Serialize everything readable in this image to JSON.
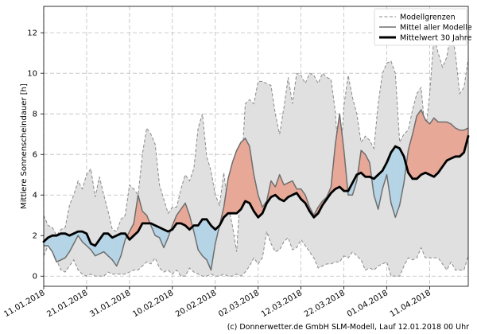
{
  "chart_data": {
    "type": "area",
    "ylabel": "Mittlere Sonnenscheindauer [h]",
    "ylim": [
      -0.5,
      13.3
    ],
    "yticks": [
      0,
      2,
      4,
      6,
      8,
      10,
      12
    ],
    "x_days_range": [
      0,
      99
    ],
    "xticks": [
      {
        "day": 0,
        "label": "11.01.2018"
      },
      {
        "day": 10,
        "label": "21.01.2018"
      },
      {
        "day": 20,
        "label": "31.01.2018"
      },
      {
        "day": 30,
        "label": "10.02.2018"
      },
      {
        "day": 40,
        "label": "20.02.2018"
      },
      {
        "day": 50,
        "label": "02.03.2018"
      },
      {
        "day": 60,
        "label": "12.03.2018"
      },
      {
        "day": 70,
        "label": "22.03.2018"
      },
      {
        "day": 80,
        "label": "01.04.2018"
      },
      {
        "day": 90,
        "label": "11.04.2018"
      }
    ],
    "grid": true,
    "legend_position": "top-right",
    "legend": [
      {
        "key": "grenzen",
        "label": "Modellgrenzen"
      },
      {
        "key": "mittel",
        "label": "Mittel aller Modelle"
      },
      {
        "key": "mean30",
        "label": "Mittelwert 30 Jahre"
      }
    ],
    "colors": {
      "envelope": "#e0e0e0",
      "envelope_edge": "#8a8a8a",
      "above": "#e8a898",
      "below": "#b5d5e6",
      "mittel": "#6e6e6e",
      "mean30": "#000000",
      "grid": "#bdbdbd"
    },
    "x": [
      0,
      1,
      2,
      3,
      4,
      5,
      6,
      7,
      8,
      9,
      10,
      11,
      12,
      13,
      14,
      15,
      16,
      17,
      18,
      19,
      20,
      21,
      22,
      23,
      24,
      25,
      26,
      27,
      28,
      29,
      30,
      31,
      32,
      33,
      34,
      35,
      36,
      37,
      38,
      39,
      40,
      41,
      42,
      43,
      44,
      45,
      46,
      47,
      48,
      49,
      50,
      51,
      52,
      53,
      54,
      55,
      56,
      57,
      58,
      59,
      60,
      61,
      62,
      63,
      64,
      65,
      66,
      67,
      68,
      69,
      70,
      71,
      72,
      73,
      74,
      75,
      76,
      77,
      78,
      79,
      80,
      81,
      82,
      83,
      84,
      85,
      86,
      87,
      88,
      89,
      90,
      91,
      92,
      93,
      94,
      95,
      96,
      97,
      98,
      99
    ],
    "upper": [
      3.0,
      2.5,
      2.4,
      2.0,
      2.3,
      2.4,
      3.5,
      4.0,
      4.7,
      4.3,
      5.0,
      5.3,
      3.9,
      4.9,
      4.0,
      3.2,
      2.3,
      2.2,
      2.8,
      3.0,
      4.5,
      4.3,
      4.0,
      6.0,
      7.3,
      7.0,
      6.5,
      4.5,
      3.8,
      3.1,
      3.4,
      3.4,
      4.3,
      5.0,
      4.7,
      5.3,
      7.3,
      8.0,
      5.9,
      5.2,
      4.0,
      3.5,
      5.1,
      3.5,
      2.5,
      1.2,
      4.8,
      8.5,
      8.7,
      8.5,
      9.6,
      9.6,
      9.5,
      9.4,
      8.0,
      7.0,
      8.3,
      9.8,
      8.5,
      10.0,
      9.9,
      9.5,
      10.0,
      9.9,
      9.5,
      10.0,
      9.8,
      9.7,
      8.1,
      5.0,
      8.4,
      9.9,
      8.8,
      8.0,
      6.6,
      6.9,
      6.7,
      6.3,
      8.5,
      10.0,
      10.5,
      10.6,
      10.0,
      6.6,
      7.0,
      7.2,
      8.2,
      9.0,
      9.3,
      7.0,
      9.0,
      11.8,
      11.0,
      10.3,
      10.8,
      12.1,
      11.0,
      9.0,
      9.3,
      10.7
    ],
    "lower": [
      1.0,
      1.5,
      1.2,
      0.8,
      0.3,
      0.2,
      0.5,
      0.8,
      0.3,
      0.1,
      0.0,
      0.1,
      0.0,
      0.0,
      0.0,
      0.2,
      0.1,
      0.1,
      0.1,
      0.1,
      0.2,
      0.3,
      0.3,
      0.5,
      0.7,
      0.6,
      0.9,
      0.4,
      0.2,
      0.3,
      0.1,
      0.3,
      0.0,
      0.0,
      0.4,
      0.2,
      0.1,
      0.0,
      0.0,
      0.1,
      0.0,
      0.0,
      0.1,
      0.0,
      0.0,
      0.1,
      0.0,
      0.2,
      0.5,
      0.9,
      0.6,
      0.9,
      2.2,
      1.6,
      1.2,
      1.3,
      1.7,
      1.9,
      1.3,
      1.4,
      1.8,
      1.5,
      1.2,
      0.9,
      0.4,
      0.5,
      0.6,
      0.6,
      0.7,
      0.7,
      1.0,
      0.9,
      1.2,
      1.0,
      0.8,
      0.3,
      0.4,
      0.3,
      0.5,
      0.6,
      0.7,
      0.0,
      0.0,
      0.0,
      0.5,
      0.9,
      0.8,
      0.9,
      1.4,
      0.9,
      0.9,
      0.9,
      0.9,
      0.6,
      0.3,
      0.7,
      0.3,
      0.3,
      0.3,
      1.0
    ],
    "mittel": [
      1.5,
      1.5,
      1.2,
      0.7,
      0.8,
      0.9,
      1.2,
      1.6,
      2.0,
      1.7,
      1.5,
      1.3,
      1.0,
      1.1,
      1.2,
      1.0,
      0.8,
      0.5,
      1.0,
      1.8,
      2.2,
      2.6,
      4.0,
      3.2,
      3.0,
      2.5,
      2.0,
      1.9,
      1.4,
      1.9,
      2.5,
      3.0,
      3.3,
      3.6,
      3.0,
      2.2,
      1.3,
      1.0,
      0.8,
      0.3,
      1.6,
      2.5,
      3.4,
      4.8,
      5.6,
      6.2,
      6.6,
      6.8,
      6.4,
      5.0,
      4.0,
      3.4,
      3.7,
      4.7,
      4.4,
      5.0,
      4.5,
      4.6,
      4.7,
      4.3,
      4.3,
      4.0,
      3.4,
      3.0,
      3.4,
      3.7,
      3.9,
      4.4,
      6.5,
      8.0,
      6.2,
      4.0,
      4.0,
      4.7,
      6.2,
      6.0,
      5.6,
      4.0,
      3.3,
      4.3,
      5.0,
      3.6,
      2.9,
      3.5,
      4.6,
      6.2,
      7.0,
      7.9,
      8.2,
      7.7,
      7.5,
      7.8,
      7.6,
      7.6,
      7.6,
      7.5,
      7.3,
      7.2,
      7.2,
      7.3
    ],
    "mean30": [
      1.7,
      1.9,
      2.0,
      2.0,
      2.1,
      2.1,
      2.0,
      2.1,
      2.2,
      2.2,
      2.1,
      1.6,
      1.5,
      1.8,
      2.1,
      2.1,
      1.9,
      2.0,
      2.1,
      2.1,
      1.8,
      2.0,
      2.2,
      2.6,
      2.6,
      2.6,
      2.5,
      2.4,
      2.3,
      2.2,
      2.3,
      2.6,
      2.6,
      2.5,
      2.3,
      2.5,
      2.5,
      2.8,
      2.8,
      2.5,
      2.3,
      2.5,
      2.9,
      3.1,
      3.1,
      3.1,
      3.3,
      3.7,
      3.6,
      3.2,
      2.9,
      3.1,
      3.6,
      3.9,
      4.0,
      3.8,
      3.7,
      3.9,
      4.0,
      4.1,
      3.8,
      3.6,
      3.2,
      2.9,
      3.1,
      3.5,
      3.8,
      4.1,
      4.3,
      4.4,
      4.2,
      4.2,
      4.6,
      5.0,
      5.1,
      4.9,
      4.9,
      4.8,
      5.0,
      5.2,
      5.6,
      6.1,
      6.4,
      6.3,
      5.9,
      5.1,
      4.8,
      4.8,
      5.0,
      5.1,
      5.0,
      4.9,
      5.1,
      5.4,
      5.7,
      5.8,
      5.9,
      5.9,
      6.1,
      6.9
    ]
  },
  "footer": {
    "credit": "(c) Donnerwetter.de GmbH SLM-Modell, Lauf 12.01.2018 00 Uhr"
  }
}
